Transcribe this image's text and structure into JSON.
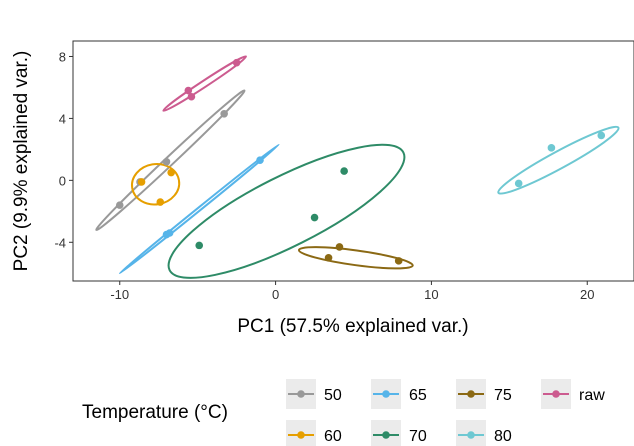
{
  "chart_data": {
    "type": "scatter",
    "title": "",
    "xlabel": "PC1 (57.5% explained var.)",
    "ylabel": "PC2 (9.9% explained var.)",
    "xlim": [
      -13,
      23
    ],
    "ylim": [
      -6.5,
      9
    ],
    "x_ticks": [
      -10,
      0,
      10,
      20
    ],
    "y_ticks": [
      -4,
      0,
      4,
      8
    ],
    "grid": false,
    "panel_border": true,
    "legend": {
      "title": "Temperature (°C)",
      "position": "bottom"
    },
    "series": [
      {
        "name": "50",
        "color": "#999999",
        "points": [
          [
            -3.3,
            4.3
          ],
          [
            -7.0,
            1.2
          ],
          [
            -8.7,
            -0.1
          ],
          [
            -10.0,
            -1.6
          ]
        ],
        "ellipse_ends": [
          [
            -11.5,
            -3.2
          ],
          [
            -2.0,
            5.8
          ]
        ],
        "ellipse_width": 0.55
      },
      {
        "name": "60",
        "color": "#E69F00",
        "points": [
          [
            -6.7,
            0.5
          ],
          [
            -8.6,
            -0.1
          ],
          [
            -7.4,
            -1.4
          ]
        ],
        "ellipse_ends": [
          [
            -9.2,
            -0.5
          ],
          [
            -6.2,
            0.0
          ]
        ],
        "ellipse_width": 2.6
      },
      {
        "name": "65",
        "color": "#56B4E9",
        "points": [
          [
            -1.0,
            1.3
          ],
          [
            -6.8,
            -3.4
          ],
          [
            -7.0,
            -3.5
          ]
        ],
        "ellipse_ends": [
          [
            -10.0,
            -6.0
          ],
          [
            0.2,
            2.3
          ]
        ],
        "ellipse_width": 0.2
      },
      {
        "name": "70",
        "color": "#2E8B67",
        "points": [
          [
            4.4,
            0.6
          ],
          [
            2.5,
            -2.4
          ],
          [
            -4.9,
            -4.2
          ]
        ],
        "ellipse_ends": [
          [
            -6.8,
            -5.8
          ],
          [
            8.2,
            1.8
          ]
        ],
        "ellipse_width": 4.5
      },
      {
        "name": "75",
        "color": "#8B6914",
        "points": [
          [
            4.1,
            -4.3
          ],
          [
            3.4,
            -5.0
          ],
          [
            7.9,
            -5.2
          ]
        ],
        "ellipse_ends": [
          [
            1.5,
            -4.5
          ],
          [
            8.8,
            -5.5
          ]
        ],
        "ellipse_width": 0.95
      },
      {
        "name": "80",
        "color": "#6EC8D2",
        "points": [
          [
            20.9,
            2.9
          ],
          [
            17.7,
            2.1
          ],
          [
            15.6,
            -0.2
          ]
        ],
        "ellipse_ends": [
          [
            14.3,
            -0.8
          ],
          [
            22.0,
            3.4
          ]
        ],
        "ellipse_width": 1.1
      },
      {
        "name": "raw",
        "color": "#CC5B8F",
        "points": [
          [
            -2.5,
            7.6
          ],
          [
            -5.6,
            5.8
          ],
          [
            -5.4,
            5.4
          ]
        ],
        "ellipse_ends": [
          [
            -7.2,
            4.5
          ],
          [
            -1.9,
            8.0
          ]
        ],
        "ellipse_width": 0.4
      }
    ],
    "legend_order": [
      "50",
      "60",
      "65",
      "70",
      "75",
      "80",
      "raw"
    ]
  }
}
